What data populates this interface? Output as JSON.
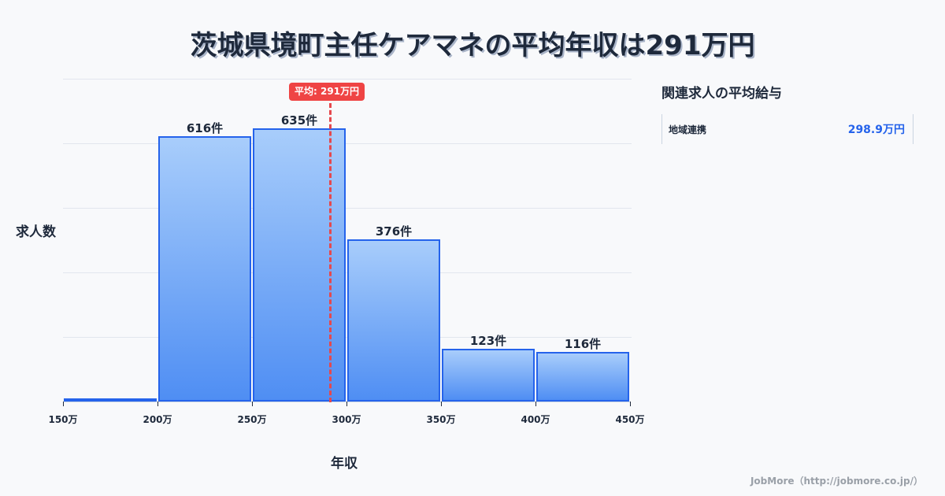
{
  "title": "茨城県境町主任ケアマネの平均年収は291万円",
  "chart_data": {
    "type": "bar",
    "title": "茨城県境町主任ケアマネの平均年収は291万円",
    "xlabel": "年収",
    "ylabel": "求人数",
    "categories": [
      "150-200万",
      "200-250万",
      "250-300万",
      "300-350万",
      "350-400万",
      "400-450万"
    ],
    "values": [
      5,
      616,
      635,
      376,
      123,
      116
    ],
    "value_labels": [
      "",
      "616件",
      "635件",
      "376件",
      "123件",
      "116件"
    ],
    "x_ticks": [
      "150万",
      "200万",
      "250万",
      "300万",
      "350万",
      "400万",
      "450万"
    ],
    "ylim": [
      0,
      750
    ],
    "grid": true,
    "average": {
      "value": 291,
      "label": "平均: 291万円"
    }
  },
  "side_panel": {
    "title": "関連求人の平均給与",
    "items": [
      {
        "name": "地域連携",
        "value": "298.9万円"
      }
    ]
  },
  "footer": "JobMore（http://jobmore.co.jp/）",
  "colors": {
    "bar_fill_top": "#a8cdfb",
    "bar_fill_bottom": "#4f8ef3",
    "bar_border": "#2563eb",
    "average": "#ef4444",
    "accent": "#2563eb"
  }
}
